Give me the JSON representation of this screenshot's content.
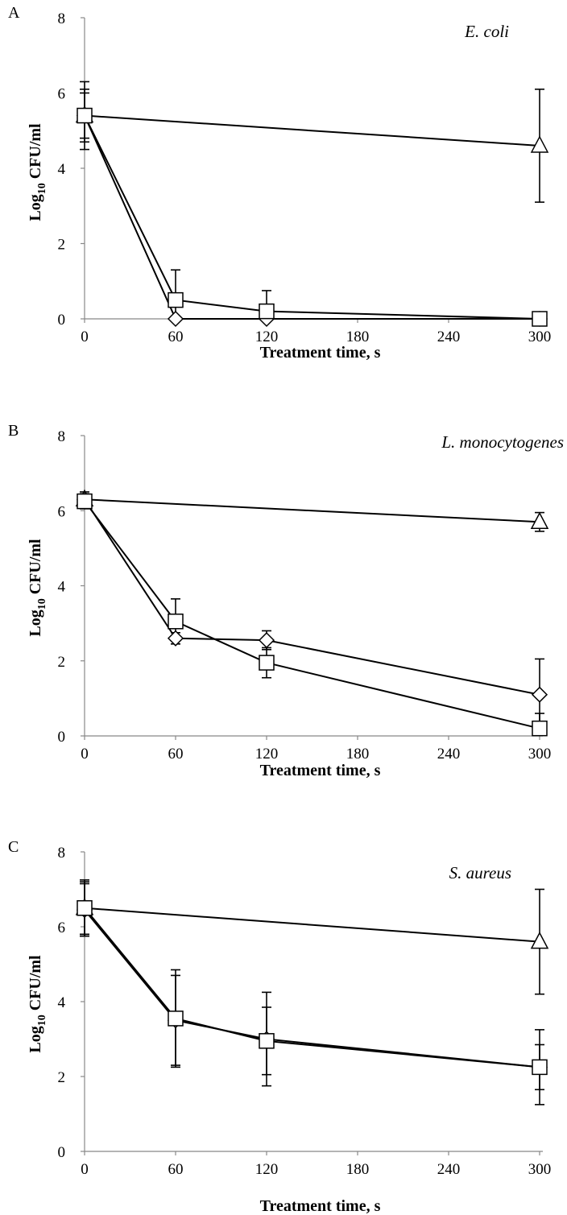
{
  "chart_data": [
    {
      "panel_label": "A",
      "species": "E. coli",
      "type": "line",
      "xlabel": "Treatment time, s",
      "ylabel_main": "Log",
      "ylabel_sub": "10",
      "ylabel_rest": " CFU/ml",
      "xlim": [
        0,
        300
      ],
      "ylim": [
        0,
        8
      ],
      "xticks": [
        0,
        60,
        120,
        180,
        240,
        300
      ],
      "yticks": [
        0,
        2,
        4,
        6,
        8
      ],
      "series": [
        {
          "marker": "triangle",
          "x": [
            0,
            300
          ],
          "y": [
            5.4,
            4.6
          ],
          "err": [
            0.9,
            1.5
          ]
        },
        {
          "marker": "diamond",
          "x": [
            0,
            60,
            120,
            300
          ],
          "y": [
            5.4,
            0.0,
            0.0,
            0.0
          ],
          "err": [
            0.7,
            0.0,
            0.0,
            0.0
          ]
        },
        {
          "marker": "square",
          "x": [
            0,
            60,
            120,
            300
          ],
          "y": [
            5.4,
            0.5,
            0.2,
            0.0
          ],
          "err": [
            0.6,
            0.8,
            0.55,
            0.0
          ]
        }
      ]
    },
    {
      "panel_label": "B",
      "species": "L. monocytogenes",
      "type": "line",
      "xlabel": "Treatment time, s",
      "ylabel_main": "Log",
      "ylabel_sub": "10",
      "ylabel_rest": " CFU/ml",
      "xlim": [
        0,
        300
      ],
      "ylim": [
        0,
        8
      ],
      "xticks": [
        0,
        60,
        120,
        180,
        240,
        300
      ],
      "yticks": [
        0,
        2,
        4,
        6,
        8
      ],
      "series": [
        {
          "marker": "triangle",
          "x": [
            0,
            300
          ],
          "y": [
            6.3,
            5.7
          ],
          "err": [
            0.15,
            0.25
          ]
        },
        {
          "marker": "diamond",
          "x": [
            0,
            60,
            120,
            300
          ],
          "y": [
            6.3,
            2.6,
            2.55,
            1.1
          ],
          "err": [
            0.2,
            0.15,
            0.25,
            0.95
          ]
        },
        {
          "marker": "square",
          "x": [
            0,
            60,
            120,
            300
          ],
          "y": [
            6.25,
            3.05,
            1.95,
            0.2
          ],
          "err": [
            0.2,
            0.6,
            0.4,
            0.4
          ]
        }
      ]
    },
    {
      "panel_label": "C",
      "species": "S. aureus",
      "type": "line",
      "xlabel": "Treatment time, s",
      "ylabel_main": "Log",
      "ylabel_sub": "10",
      "ylabel_rest": " CFU/ml",
      "xlim": [
        0,
        300
      ],
      "ylim": [
        0,
        8
      ],
      "xticks": [
        0,
        60,
        120,
        180,
        240,
        300
      ],
      "yticks": [
        0,
        2,
        4,
        6,
        8
      ],
      "series": [
        {
          "marker": "triangle",
          "x": [
            0,
            300
          ],
          "y": [
            6.5,
            5.6
          ],
          "err": [
            0.75,
            1.4
          ]
        },
        {
          "marker": "diamond",
          "x": [
            0,
            60,
            120,
            300
          ],
          "y": [
            6.45,
            3.5,
            3.0,
            2.25
          ],
          "err": [
            0.7,
            1.2,
            1.25,
            1.0
          ]
        },
        {
          "marker": "square",
          "x": [
            0,
            60,
            120,
            300
          ],
          "y": [
            6.5,
            3.55,
            2.95,
            2.25
          ],
          "err": [
            0.7,
            1.3,
            0.9,
            0.6
          ]
        }
      ]
    }
  ]
}
